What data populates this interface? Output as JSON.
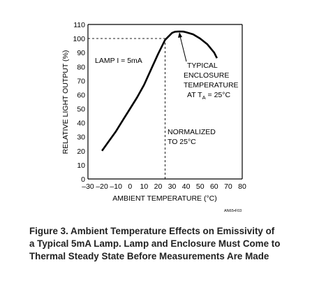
{
  "chart_data": {
    "type": "line",
    "xlabel": "AMBIENT TEMPERATURE (°C)",
    "ylabel": "RELATIVE LIGHT OUTPUT (%)",
    "xlim": [
      -30,
      80
    ],
    "ylim": [
      0,
      110
    ],
    "x_ticks": [
      "–30",
      "–20",
      "–10",
      "0",
      "10",
      "20",
      "30",
      "40",
      "50",
      "60",
      "70",
      "80"
    ],
    "y_ticks": [
      "0",
      "10",
      "20",
      "30",
      "40",
      "50",
      "60",
      "70",
      "80",
      "90",
      "100",
      "110"
    ],
    "grid": false,
    "series": [
      {
        "x": [
          -20,
          -15,
          -10,
          -5,
          0,
          5,
          10,
          15,
          20,
          25,
          28,
          30,
          32,
          35,
          38,
          40,
          45,
          50,
          55,
          60,
          62
        ],
        "y": [
          20,
          27,
          34,
          42,
          50,
          58,
          67,
          78,
          89,
          99,
          102,
          104,
          104.8,
          105,
          104.9,
          104.5,
          103,
          100,
          96,
          90,
          86
        ]
      }
    ],
    "reference_lines": [
      {
        "type": "horizontal",
        "y": 100,
        "x_range": [
          -30,
          25
        ],
        "style": "dashed"
      },
      {
        "type": "vertical",
        "x": 25,
        "y_range": [
          0,
          100
        ],
        "style": "dashed"
      }
    ],
    "annotations": {
      "lamp": "LAMP I = 5mA",
      "typical": [
        "TYPICAL",
        "ENCLOSURE",
        "TEMPERATURE"
      ],
      "typical_at": {
        "prefix": "AT T",
        "sub": "A",
        "suffix": " = 25°C"
      },
      "normalized": [
        "NORMALIZED",
        "TO 25°C"
      ]
    },
    "figure_code": "AN65•F03"
  },
  "caption": {
    "lines": [
      "Figure 3. Ambient Temperature Effects on Emissivity of",
      "a Typical 5mA Lamp. Lamp and Enclosure Must Come to",
      "Thermal Steady State Before Measurements Are Made"
    ]
  }
}
